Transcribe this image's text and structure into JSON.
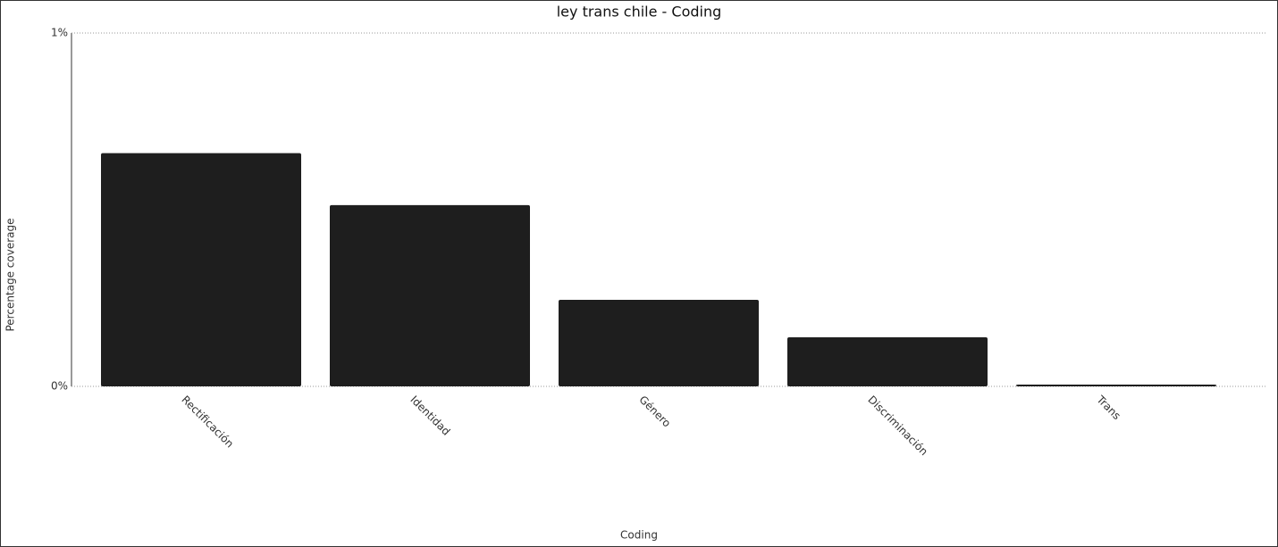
{
  "chart_data": {
    "type": "bar",
    "title": "ley trans chile - Coding",
    "x_label": "Coding",
    "y_label": "Percentage coverage",
    "categories": [
      "Rectificación",
      "Identidad",
      "Género",
      "Discriminación",
      "Trans"
    ],
    "values": [
      0.66,
      0.513,
      0.245,
      0.139,
      0.005
    ],
    "color": "#1e1e1e",
    "ylim": [
      0,
      1
    ],
    "yticks": [
      {
        "value": 0,
        "label": "0%"
      },
      {
        "value": 1,
        "label": "1%"
      }
    ],
    "grid": true
  }
}
